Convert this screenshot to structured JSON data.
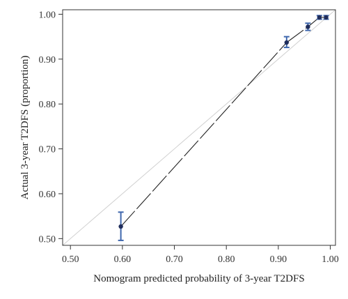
{
  "chart_data": {
    "type": "scatter",
    "title": "",
    "xlabel": "Nomogram predicted probability of 3-year T2DFS",
    "ylabel": "Actual 3-year T2DFS (proportion)",
    "xlim": [
      0.485,
      1.01
    ],
    "ylim": [
      0.485,
      1.01
    ],
    "x_ticks": [
      "0.50",
      "0.60",
      "0.70",
      "0.80",
      "0.90",
      "1.00"
    ],
    "y_ticks": [
      "0.50",
      "0.60",
      "0.70",
      "0.80",
      "0.90",
      "1.00"
    ],
    "grid": false,
    "legend": "none",
    "reference_line": {
      "from": [
        0.485,
        0.485
      ],
      "to": [
        1.01,
        1.01
      ],
      "color": "#d0d0d0"
    },
    "series": [
      {
        "points": [
          {
            "x": 0.597,
            "y": 0.527,
            "err_low": 0.496,
            "err_high": 0.559
          },
          {
            "x": 0.916,
            "y": 0.937,
            "err_low": 0.926,
            "err_high": 0.95
          },
          {
            "x": 0.957,
            "y": 0.972,
            "err_low": 0.964,
            "err_high": 0.98
          },
          {
            "x": 0.979,
            "y": 0.993,
            "err_low": 0.989,
            "err_high": 0.997
          },
          {
            "x": 0.992,
            "y": 0.993,
            "err_low": 0.989,
            "err_high": 0.997
          }
        ],
        "line_color": "#222222",
        "marker_color": "#1f2d5c",
        "errorbar_color": "#3f67ad"
      }
    ]
  }
}
